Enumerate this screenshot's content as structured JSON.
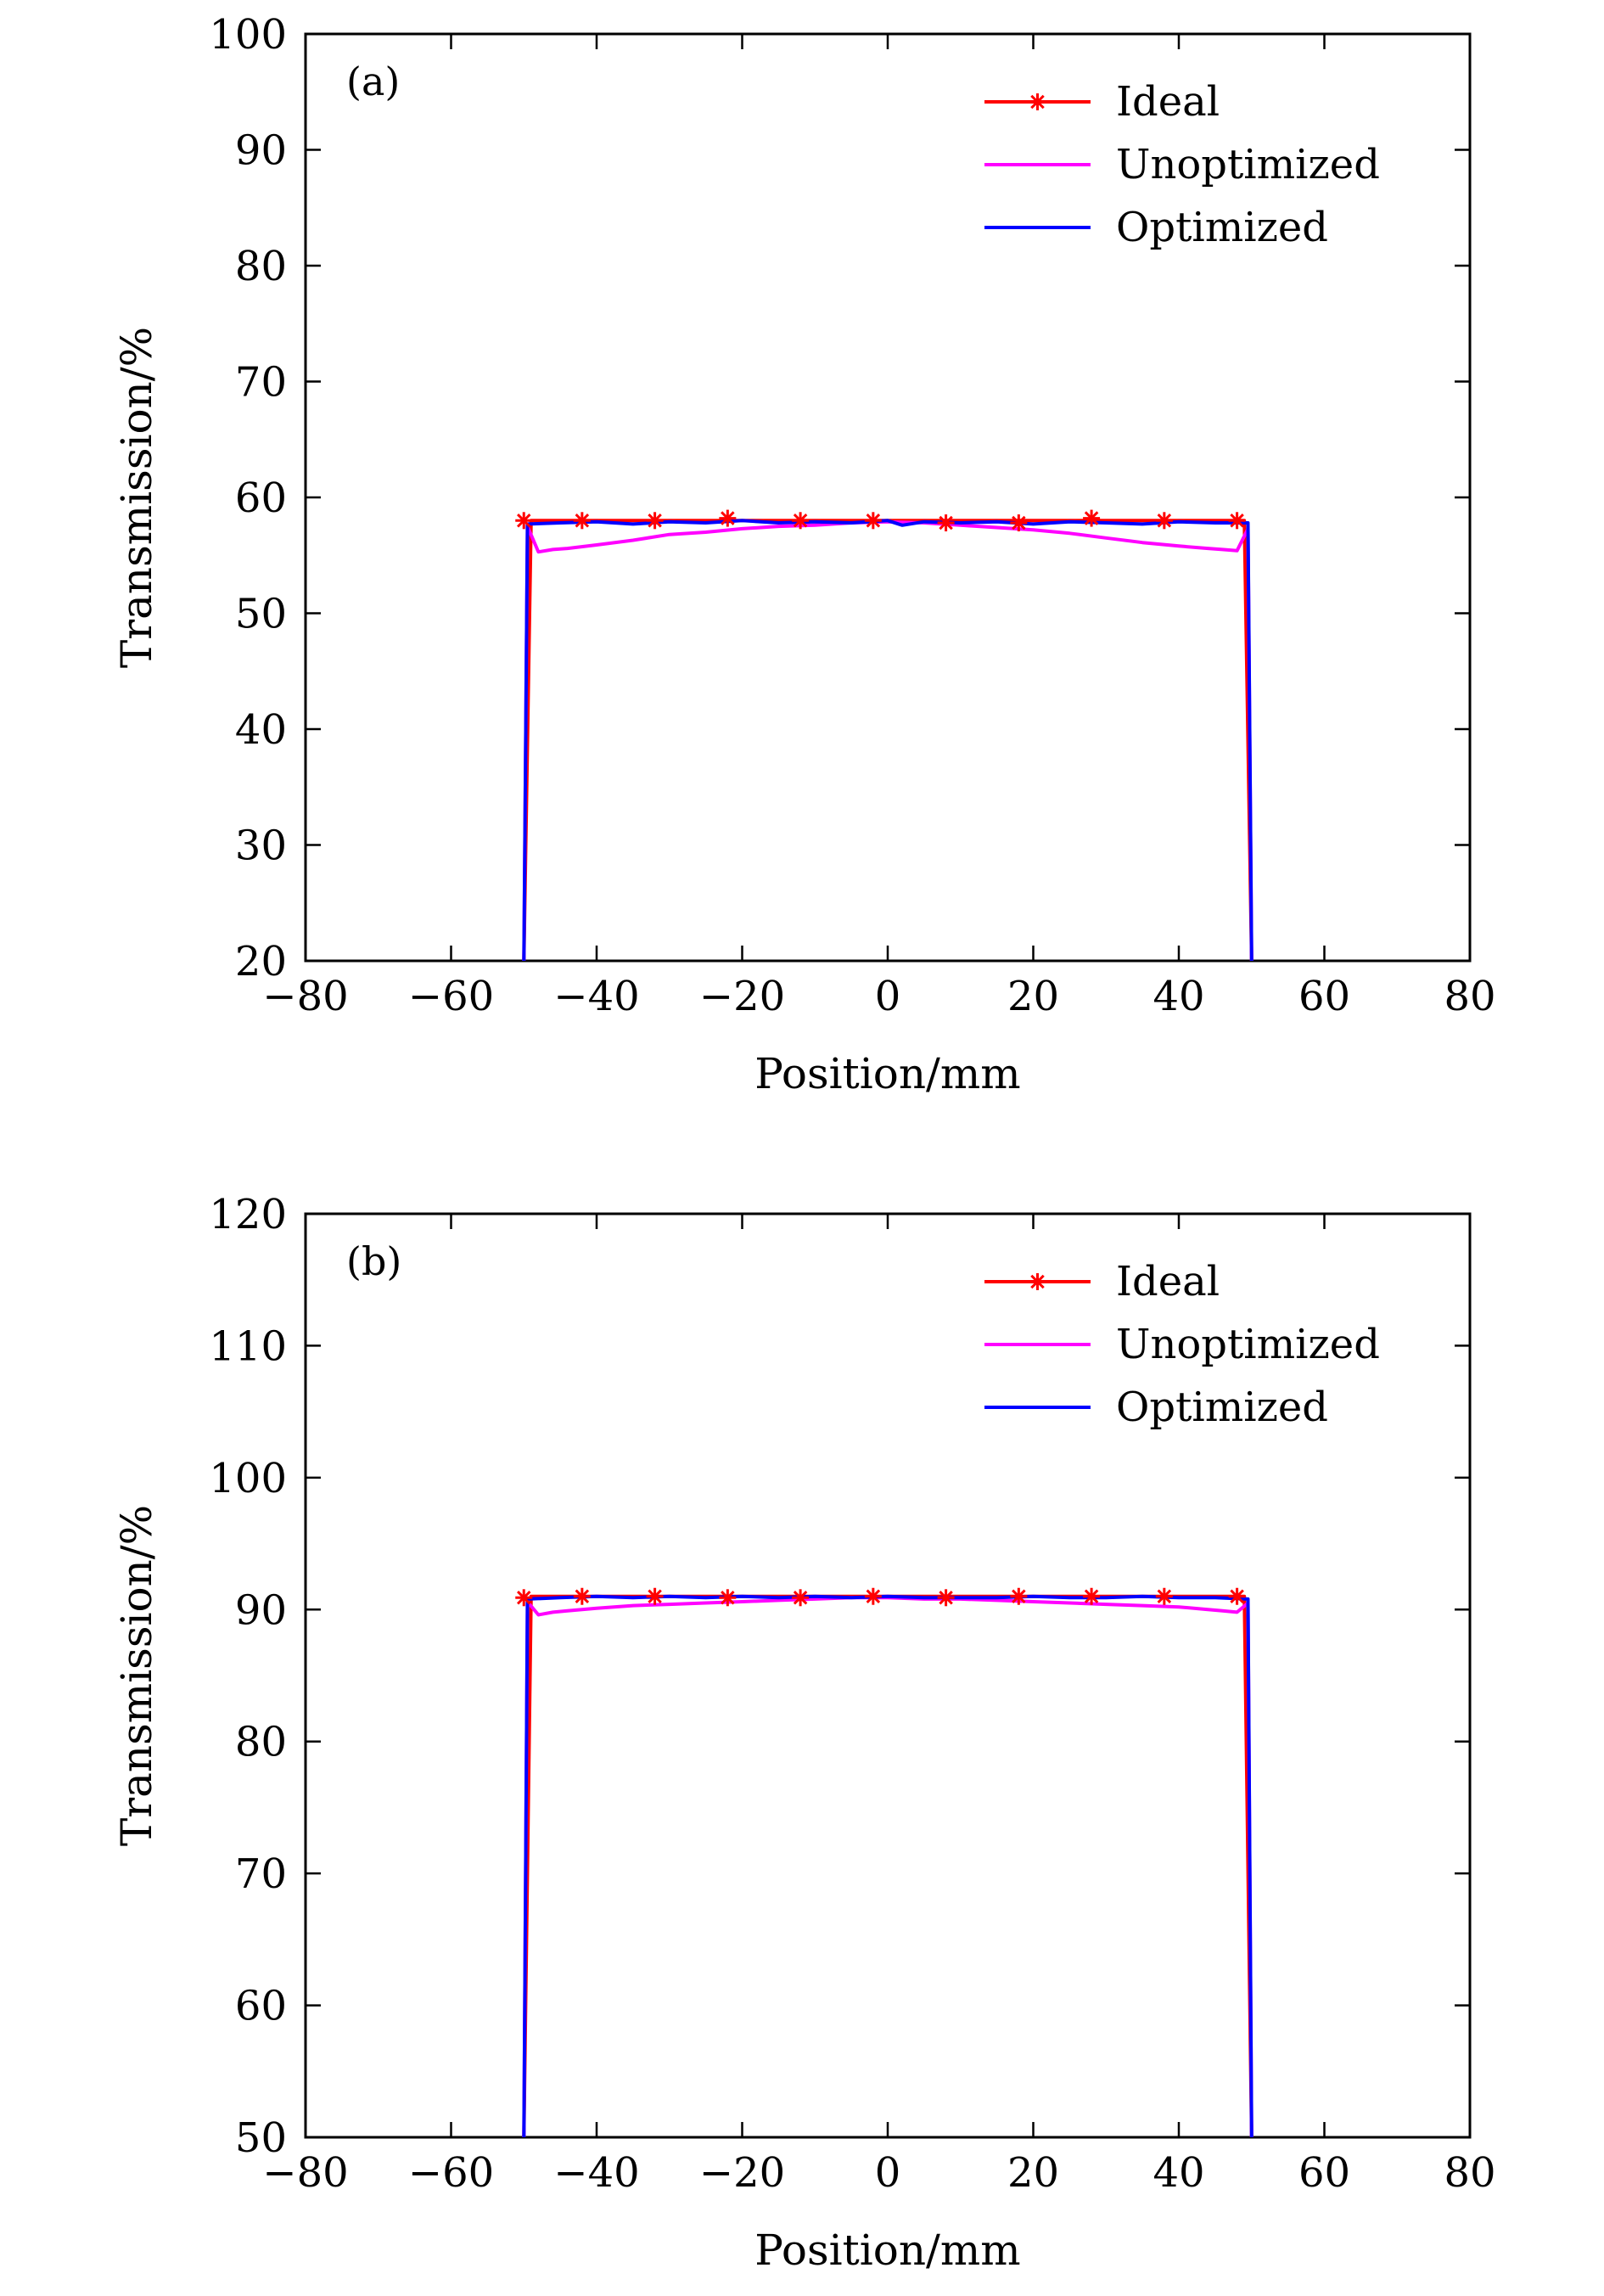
{
  "chart_data": [
    {
      "type": "line",
      "panel_label": "(a)",
      "xlabel": "Position/mm",
      "ylabel": "Transmission/%",
      "xlim": [
        -80,
        80
      ],
      "ylim": [
        20,
        100
      ],
      "xticks": [
        -80,
        -60,
        -40,
        -20,
        0,
        20,
        40,
        60,
        80
      ],
      "xtick_labels": [
        "−80",
        "−60",
        "−40",
        "−20",
        "0",
        "20",
        "40",
        "60",
        "80"
      ],
      "yticks": [
        20,
        30,
        40,
        50,
        60,
        70,
        80,
        90,
        100
      ],
      "ytick_labels": [
        "20",
        "30",
        "40",
        "50",
        "60",
        "70",
        "80",
        "90",
        "100"
      ],
      "grid": false,
      "legend_position": "top-right",
      "series": [
        {
          "name": "Ideal",
          "color": "#ff0000",
          "marker": "asterisk",
          "x": [
            -50,
            -49,
            -40,
            -30,
            -20,
            -10,
            0,
            10,
            20,
            30,
            40,
            49,
            50
          ],
          "y": [
            20,
            58,
            58,
            58,
            58,
            58,
            58,
            58,
            58,
            58,
            58,
            58,
            20
          ],
          "marker_x": [
            -50,
            -42,
            -32,
            -22,
            -12,
            -2,
            8,
            18,
            28,
            38,
            48
          ],
          "marker_y": [
            58,
            58,
            58,
            58.2,
            58,
            58,
            57.8,
            57.8,
            58.2,
            58,
            58
          ]
        },
        {
          "name": "Unoptimized",
          "color": "#ff00ff",
          "x": [
            -50,
            -49.5,
            -48,
            -46,
            -44,
            -40,
            -35,
            -30,
            -25,
            -20,
            -15,
            -10,
            -5,
            0,
            5,
            10,
            15,
            20,
            25,
            30,
            35,
            40,
            44,
            46,
            48,
            49.5,
            50
          ],
          "y": [
            20,
            57.5,
            55.3,
            55.5,
            55.6,
            55.9,
            56.3,
            56.8,
            57.0,
            57.3,
            57.5,
            57.6,
            57.8,
            57.9,
            57.8,
            57.6,
            57.4,
            57.2,
            56.9,
            56.5,
            56.1,
            55.8,
            55.6,
            55.5,
            55.4,
            57.3,
            20
          ]
        },
        {
          "name": "Optimized",
          "color": "#0000ff",
          "x": [
            -50,
            -49.5,
            -45,
            -40,
            -35,
            -30,
            -25,
            -20,
            -15,
            -10,
            -5,
            0,
            2,
            5,
            10,
            15,
            20,
            25,
            30,
            35,
            40,
            45,
            49.5,
            50
          ],
          "y": [
            20,
            57.7,
            57.8,
            57.9,
            57.7,
            57.9,
            57.8,
            58.0,
            57.8,
            57.9,
            57.8,
            58.0,
            57.6,
            57.9,
            57.8,
            57.9,
            57.7,
            57.9,
            57.8,
            57.7,
            57.9,
            57.8,
            57.8,
            20
          ]
        }
      ]
    },
    {
      "type": "line",
      "panel_label": "(b)",
      "xlabel": "Position/mm",
      "ylabel": "Transmission/%",
      "xlim": [
        -80,
        80
      ],
      "ylim": [
        50,
        120
      ],
      "xticks": [
        -80,
        -60,
        -40,
        -20,
        0,
        20,
        40,
        60,
        80
      ],
      "xtick_labels": [
        "−80",
        "−60",
        "−40",
        "−20",
        "0",
        "20",
        "40",
        "60",
        "80"
      ],
      "yticks": [
        50,
        60,
        70,
        80,
        90,
        100,
        110,
        120
      ],
      "ytick_labels": [
        "50",
        "60",
        "70",
        "80",
        "90",
        "100",
        "110",
        "120"
      ],
      "grid": false,
      "legend_position": "top-right",
      "series": [
        {
          "name": "Ideal",
          "color": "#ff0000",
          "marker": "asterisk",
          "x": [
            -50,
            -49,
            -40,
            -30,
            -20,
            -10,
            0,
            10,
            20,
            30,
            40,
            49,
            50
          ],
          "y": [
            50,
            91,
            91,
            91,
            91,
            91,
            91,
            91,
            91,
            91,
            91,
            91,
            50
          ],
          "marker_x": [
            -50,
            -42,
            -32,
            -22,
            -12,
            -2,
            8,
            18,
            28,
            38,
            48
          ],
          "marker_y": [
            90.9,
            91,
            91,
            90.9,
            90.9,
            91,
            90.9,
            91,
            91,
            91,
            91
          ]
        },
        {
          "name": "Unoptimized",
          "color": "#ff00ff",
          "x": [
            -50,
            -49.5,
            -48,
            -46,
            -44,
            -40,
            -35,
            -30,
            -25,
            -20,
            -15,
            -10,
            -5,
            0,
            5,
            10,
            15,
            20,
            25,
            30,
            35,
            40,
            44,
            46,
            48,
            49.5,
            50
          ],
          "y": [
            50,
            90.6,
            89.6,
            89.8,
            89.9,
            90.1,
            90.3,
            90.4,
            90.5,
            90.6,
            90.7,
            90.8,
            90.9,
            90.9,
            90.8,
            90.8,
            90.7,
            90.6,
            90.5,
            90.4,
            90.3,
            90.2,
            90.0,
            89.9,
            89.8,
            90.5,
            50
          ]
        },
        {
          "name": "Optimized",
          "color": "#0000ff",
          "x": [
            -50,
            -49.5,
            -45,
            -40,
            -35,
            -30,
            -25,
            -20,
            -15,
            -10,
            -5,
            0,
            5,
            10,
            15,
            20,
            25,
            30,
            35,
            40,
            45,
            49.5,
            50
          ],
          "y": [
            50,
            90.8,
            90.9,
            91.0,
            90.9,
            91.0,
            90.9,
            91.0,
            90.9,
            91.0,
            90.9,
            91.0,
            90.9,
            90.9,
            90.9,
            91.0,
            90.9,
            90.9,
            91.0,
            90.9,
            90.9,
            90.8,
            50
          ]
        }
      ]
    }
  ]
}
